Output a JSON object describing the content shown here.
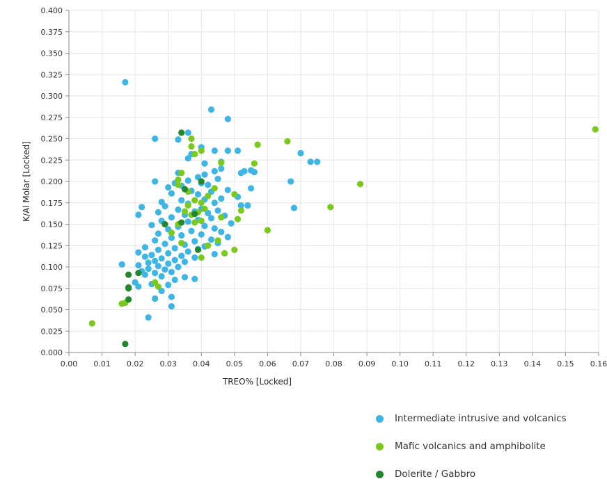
{
  "chart_data": {
    "type": "scatter",
    "title": "",
    "xlabel": "TREO% [Locked]",
    "ylabel": "K/Al Molar [Locked]",
    "xlim": [
      0.0,
      0.16
    ],
    "ylim": [
      0.0,
      0.4
    ],
    "x_ticks": [
      "0.00",
      "0.01",
      "0.02",
      "0.03",
      "0.04",
      "0.05",
      "0.06",
      "0.07",
      "0.08",
      "0.09",
      "0.10",
      "0.11",
      "0.12",
      "0.13",
      "0.14",
      "0.15",
      "0.16"
    ],
    "y_ticks": [
      "0.000",
      "0.025",
      "0.050",
      "0.075",
      "0.100",
      "0.125",
      "0.150",
      "0.175",
      "0.200",
      "0.225",
      "0.250",
      "0.275",
      "0.300",
      "0.325",
      "0.350",
      "0.375",
      "0.400"
    ],
    "grid": true,
    "legend_position": "bottom-right",
    "series": [
      {
        "name": "Intermediate intrusive and volcanics",
        "color": "#3fb5e5",
        "points": [
          [
            0.017,
            0.316
          ],
          [
            0.043,
            0.284
          ],
          [
            0.048,
            0.273
          ],
          [
            0.036,
            0.257
          ],
          [
            0.026,
            0.25
          ],
          [
            0.033,
            0.249
          ],
          [
            0.048,
            0.236
          ],
          [
            0.051,
            0.236
          ],
          [
            0.044,
            0.236
          ],
          [
            0.07,
            0.233
          ],
          [
            0.036,
            0.227
          ],
          [
            0.073,
            0.223
          ],
          [
            0.075,
            0.223
          ],
          [
            0.041,
            0.221
          ],
          [
            0.046,
            0.223
          ],
          [
            0.053,
            0.212
          ],
          [
            0.055,
            0.213
          ],
          [
            0.052,
            0.21
          ],
          [
            0.056,
            0.211
          ],
          [
            0.044,
            0.212
          ],
          [
            0.033,
            0.21
          ],
          [
            0.041,
            0.208
          ],
          [
            0.039,
            0.205
          ],
          [
            0.045,
            0.203
          ],
          [
            0.026,
            0.2
          ],
          [
            0.036,
            0.201
          ],
          [
            0.067,
            0.2
          ],
          [
            0.032,
            0.198
          ],
          [
            0.042,
            0.196
          ],
          [
            0.034,
            0.195
          ],
          [
            0.03,
            0.193
          ],
          [
            0.055,
            0.192
          ],
          [
            0.048,
            0.19
          ],
          [
            0.037,
            0.189
          ],
          [
            0.043,
            0.188
          ],
          [
            0.031,
            0.186
          ],
          [
            0.039,
            0.185
          ],
          [
            0.051,
            0.182
          ],
          [
            0.046,
            0.18
          ],
          [
            0.041,
            0.179
          ],
          [
            0.034,
            0.178
          ],
          [
            0.028,
            0.176
          ],
          [
            0.044,
            0.175
          ],
          [
            0.036,
            0.174
          ],
          [
            0.052,
            0.172
          ],
          [
            0.054,
            0.172
          ],
          [
            0.029,
            0.171
          ],
          [
            0.022,
            0.17
          ],
          [
            0.068,
            0.169
          ],
          [
            0.04,
            0.168
          ],
          [
            0.033,
            0.167
          ],
          [
            0.045,
            0.166
          ],
          [
            0.038,
            0.165
          ],
          [
            0.027,
            0.164
          ],
          [
            0.042,
            0.163
          ],
          [
            0.021,
            0.161
          ],
          [
            0.035,
            0.161
          ],
          [
            0.047,
            0.16
          ],
          [
            0.031,
            0.158
          ],
          [
            0.043,
            0.157
          ],
          [
            0.039,
            0.155
          ],
          [
            0.028,
            0.154
          ],
          [
            0.036,
            0.153
          ],
          [
            0.049,
            0.151
          ],
          [
            0.025,
            0.149
          ],
          [
            0.041,
            0.148
          ],
          [
            0.033,
            0.147
          ],
          [
            0.044,
            0.145
          ],
          [
            0.03,
            0.144
          ],
          [
            0.037,
            0.142
          ],
          [
            0.046,
            0.141
          ],
          [
            0.027,
            0.139
          ],
          [
            0.04,
            0.138
          ],
          [
            0.034,
            0.137
          ],
          [
            0.048,
            0.135
          ],
          [
            0.031,
            0.134
          ],
          [
            0.043,
            0.132
          ],
          [
            0.026,
            0.131
          ],
          [
            0.038,
            0.13
          ],
          [
            0.045,
            0.128
          ],
          [
            0.029,
            0.127
          ],
          [
            0.035,
            0.126
          ],
          [
            0.041,
            0.124
          ],
          [
            0.023,
            0.123
          ],
          [
            0.032,
            0.122
          ],
          [
            0.039,
            0.121
          ],
          [
            0.027,
            0.12
          ],
          [
            0.036,
            0.118
          ],
          [
            0.021,
            0.117
          ],
          [
            0.03,
            0.116
          ],
          [
            0.044,
            0.115
          ],
          [
            0.025,
            0.114
          ],
          [
            0.034,
            0.113
          ],
          [
            0.023,
            0.112
          ],
          [
            0.038,
            0.111
          ],
          [
            0.028,
            0.11
          ],
          [
            0.032,
            0.108
          ],
          [
            0.026,
            0.107
          ],
          [
            0.035,
            0.106
          ],
          [
            0.024,
            0.105
          ],
          [
            0.03,
            0.104
          ],
          [
            0.016,
            0.103
          ],
          [
            0.021,
            0.102
          ],
          [
            0.027,
            0.101
          ],
          [
            0.033,
            0.1
          ],
          [
            0.024,
            0.098
          ],
          [
            0.029,
            0.097
          ],
          [
            0.022,
            0.095
          ],
          [
            0.031,
            0.094
          ],
          [
            0.026,
            0.093
          ],
          [
            0.023,
            0.091
          ],
          [
            0.028,
            0.089
          ],
          [
            0.035,
            0.088
          ],
          [
            0.038,
            0.086
          ],
          [
            0.032,
            0.085
          ],
          [
            0.02,
            0.082
          ],
          [
            0.025,
            0.08
          ],
          [
            0.03,
            0.079
          ],
          [
            0.021,
            0.077
          ],
          [
            0.028,
            0.072
          ],
          [
            0.031,
            0.065
          ],
          [
            0.026,
            0.063
          ],
          [
            0.031,
            0.054
          ],
          [
            0.024,
            0.041
          ],
          [
            0.04,
            0.198
          ],
          [
            0.046,
            0.215
          ],
          [
            0.04,
            0.24
          ],
          [
            0.037,
            0.232
          ]
        ]
      },
      {
        "name": "Mafic volcanics and amphibolite",
        "color": "#7cc91e",
        "points": [
          [
            0.159,
            0.261
          ],
          [
            0.066,
            0.247
          ],
          [
            0.057,
            0.243
          ],
          [
            0.037,
            0.25
          ],
          [
            0.037,
            0.241
          ],
          [
            0.04,
            0.236
          ],
          [
            0.038,
            0.232
          ],
          [
            0.046,
            0.222
          ],
          [
            0.056,
            0.221
          ],
          [
            0.034,
            0.21
          ],
          [
            0.033,
            0.202
          ],
          [
            0.088,
            0.197
          ],
          [
            0.044,
            0.192
          ],
          [
            0.036,
            0.188
          ],
          [
            0.05,
            0.185
          ],
          [
            0.042,
            0.183
          ],
          [
            0.038,
            0.178
          ],
          [
            0.04,
            0.175
          ],
          [
            0.036,
            0.172
          ],
          [
            0.079,
            0.17
          ],
          [
            0.041,
            0.168
          ],
          [
            0.052,
            0.166
          ],
          [
            0.039,
            0.164
          ],
          [
            0.037,
            0.161
          ],
          [
            0.046,
            0.158
          ],
          [
            0.051,
            0.156
          ],
          [
            0.04,
            0.154
          ],
          [
            0.038,
            0.152
          ],
          [
            0.033,
            0.15
          ],
          [
            0.06,
            0.143
          ],
          [
            0.031,
            0.14
          ],
          [
            0.045,
            0.131
          ],
          [
            0.042,
            0.125
          ],
          [
            0.05,
            0.12
          ],
          [
            0.047,
            0.116
          ],
          [
            0.04,
            0.111
          ],
          [
            0.034,
            0.128
          ],
          [
            0.026,
            0.082
          ],
          [
            0.027,
            0.077
          ],
          [
            0.017,
            0.058
          ],
          [
            0.016,
            0.057
          ],
          [
            0.007,
            0.034
          ],
          [
            0.033,
            0.196
          ],
          [
            0.035,
            0.165
          ]
        ]
      },
      {
        "name": "Dolerite / Gabbro",
        "color": "#23872f",
        "points": [
          [
            0.034,
            0.257
          ],
          [
            0.035,
            0.191
          ],
          [
            0.034,
            0.152
          ],
          [
            0.029,
            0.15
          ],
          [
            0.039,
            0.12
          ],
          [
            0.021,
            0.093
          ],
          [
            0.018,
            0.091
          ],
          [
            0.018,
            0.076
          ],
          [
            0.018,
            0.075
          ],
          [
            0.018,
            0.062
          ],
          [
            0.017,
            0.01
          ],
          [
            0.04,
            0.2
          ],
          [
            0.038,
            0.162
          ]
        ]
      }
    ]
  }
}
